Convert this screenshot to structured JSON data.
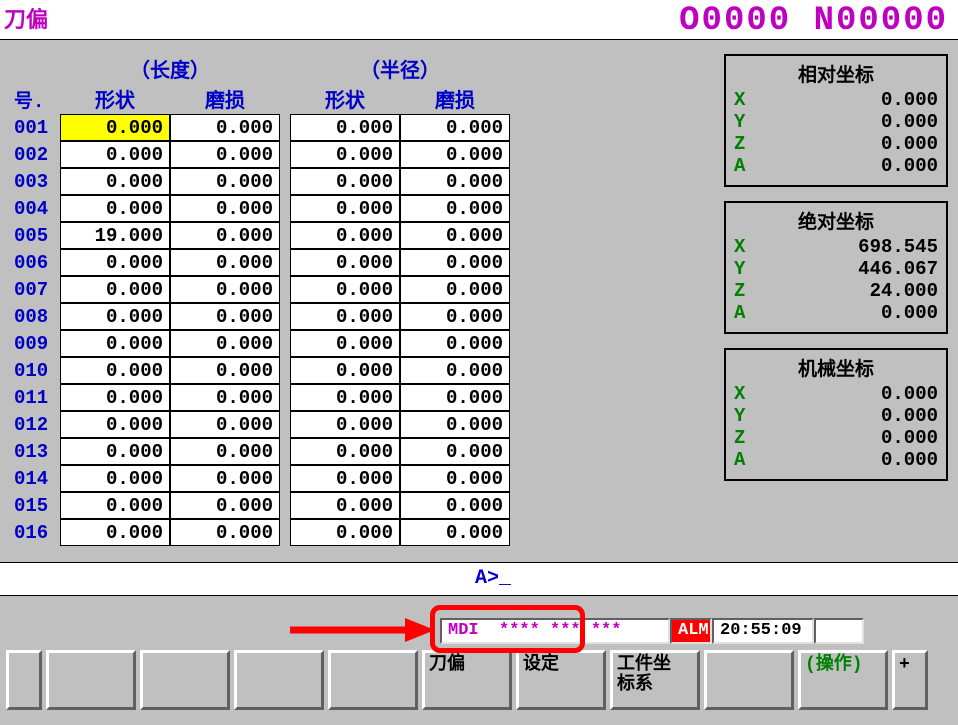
{
  "title": "刀偏",
  "program_counter": "O0000 N00000",
  "group_headers": {
    "length": "（长度）",
    "radius": "（半径）"
  },
  "columns": {
    "num": "号.",
    "shape": "形状",
    "wear": "磨损"
  },
  "rows": [
    {
      "n": "001",
      "ls": "0.000",
      "lw": "0.000",
      "rs": "0.000",
      "rw": "0.000",
      "sel": true
    },
    {
      "n": "002",
      "ls": "0.000",
      "lw": "0.000",
      "rs": "0.000",
      "rw": "0.000"
    },
    {
      "n": "003",
      "ls": "0.000",
      "lw": "0.000",
      "rs": "0.000",
      "rw": "0.000"
    },
    {
      "n": "004",
      "ls": "0.000",
      "lw": "0.000",
      "rs": "0.000",
      "rw": "0.000"
    },
    {
      "n": "005",
      "ls": "19.000",
      "lw": "0.000",
      "rs": "0.000",
      "rw": "0.000"
    },
    {
      "n": "006",
      "ls": "0.000",
      "lw": "0.000",
      "rs": "0.000",
      "rw": "0.000"
    },
    {
      "n": "007",
      "ls": "0.000",
      "lw": "0.000",
      "rs": "0.000",
      "rw": "0.000"
    },
    {
      "n": "008",
      "ls": "0.000",
      "lw": "0.000",
      "rs": "0.000",
      "rw": "0.000"
    },
    {
      "n": "009",
      "ls": "0.000",
      "lw": "0.000",
      "rs": "0.000",
      "rw": "0.000"
    },
    {
      "n": "010",
      "ls": "0.000",
      "lw": "0.000",
      "rs": "0.000",
      "rw": "0.000"
    },
    {
      "n": "011",
      "ls": "0.000",
      "lw": "0.000",
      "rs": "0.000",
      "rw": "0.000"
    },
    {
      "n": "012",
      "ls": "0.000",
      "lw": "0.000",
      "rs": "0.000",
      "rw": "0.000"
    },
    {
      "n": "013",
      "ls": "0.000",
      "lw": "0.000",
      "rs": "0.000",
      "rw": "0.000"
    },
    {
      "n": "014",
      "ls": "0.000",
      "lw": "0.000",
      "rs": "0.000",
      "rw": "0.000"
    },
    {
      "n": "015",
      "ls": "0.000",
      "lw": "0.000",
      "rs": "0.000",
      "rw": "0.000"
    },
    {
      "n": "016",
      "ls": "0.000",
      "lw": "0.000",
      "rs": "0.000",
      "rw": "0.000"
    }
  ],
  "panels": {
    "relative": {
      "title": "相对坐标",
      "X": "0.000",
      "Y": "0.000",
      "Z": "0.000",
      "A": "0.000"
    },
    "absolute": {
      "title": "绝对坐标",
      "X": "698.545",
      "Y": "446.067",
      "Z": "24.000",
      "A": "0.000"
    },
    "machine": {
      "title": "机械坐标",
      "X": "0.000",
      "Y": "0.000",
      "Z": "0.000",
      "A": "0.000"
    }
  },
  "command": {
    "prompt": "A>_"
  },
  "status": {
    "mode": "MDI",
    "stars": "**** *** ***",
    "alm": "ALM",
    "time": "20:55:09"
  },
  "softkeys": [
    "",
    "",
    "",
    "",
    "",
    "刀偏",
    "设定",
    "工件坐\n标系",
    "",
    "(操作)",
    "+"
  ],
  "colors": {
    "magenta": "#c000c0",
    "blue": "#0000c8",
    "green": "#008000",
    "yellow": "#ffff00",
    "red": "#ff0000",
    "gray": "#c0c0c0",
    "white": "#ffffff"
  }
}
